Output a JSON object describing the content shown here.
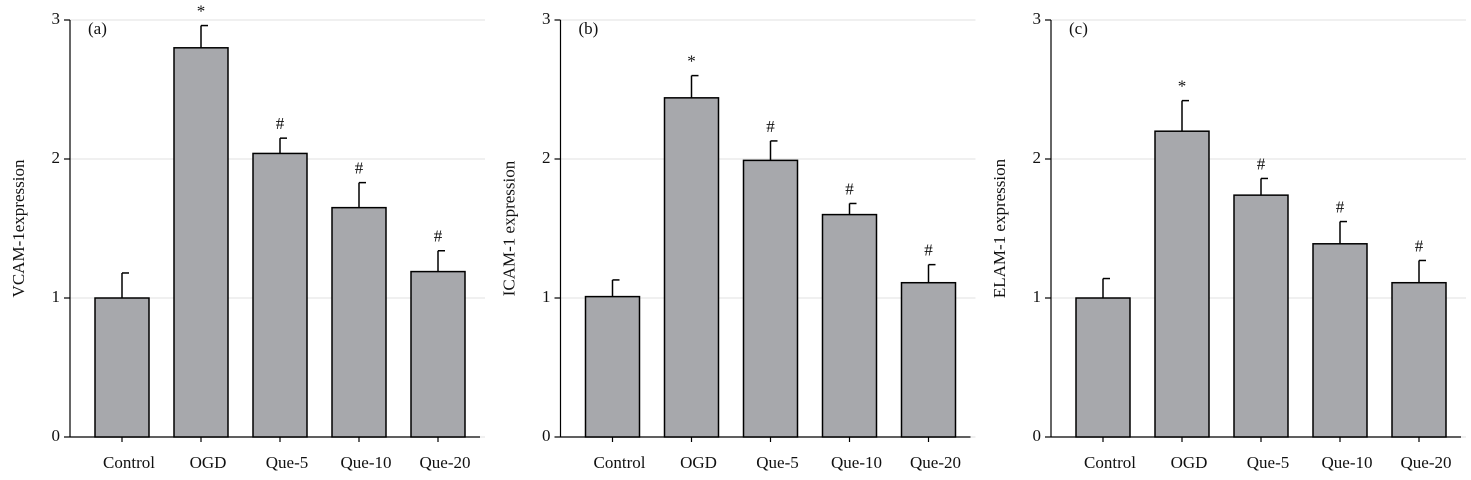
{
  "chart_data": [
    {
      "type": "bar",
      "panel_label": "(a)",
      "ylabel": "VCAM-1expression",
      "categories": [
        "Control",
        "OGD",
        "Que-5",
        "Que-10",
        "Que-20"
      ],
      "values": [
        1.0,
        2.8,
        2.04,
        1.65,
        1.19
      ],
      "errors": [
        0.18,
        0.16,
        0.11,
        0.18,
        0.15
      ],
      "markers": [
        null,
        "*",
        "#",
        "#",
        "#"
      ],
      "color": "#a7a8ac",
      "ylim": [
        0,
        3
      ],
      "yticks": [
        0,
        1,
        2,
        3
      ],
      "grid": true
    },
    {
      "type": "bar",
      "panel_label": "(b)",
      "ylabel": "ICAM-1 expression",
      "categories": [
        "Control",
        "OGD",
        "Que-5",
        "Que-10",
        "Que-20"
      ],
      "values": [
        1.01,
        2.44,
        1.99,
        1.6,
        1.11
      ],
      "errors": [
        0.12,
        0.16,
        0.14,
        0.08,
        0.13
      ],
      "markers": [
        null,
        "*",
        "#",
        "#",
        "#"
      ],
      "color": "#a7a8ac",
      "ylim": [
        0,
        3
      ],
      "yticks": [
        0,
        1,
        2,
        3
      ],
      "grid": true
    },
    {
      "type": "bar",
      "panel_label": "(c)",
      "ylabel": "ELAM-1 expression",
      "categories": [
        "Control",
        "OGD",
        "Que-5",
        "Que-10",
        "Que-20"
      ],
      "values": [
        1.0,
        2.2,
        1.74,
        1.39,
        1.11
      ],
      "errors": [
        0.14,
        0.22,
        0.12,
        0.16,
        0.16
      ],
      "markers": [
        null,
        "*",
        "#",
        "#",
        "#"
      ],
      "color": "#a7a8ac",
      "ylim": [
        0,
        3
      ],
      "yticks": [
        0,
        1,
        2,
        3
      ],
      "grid": true
    }
  ]
}
